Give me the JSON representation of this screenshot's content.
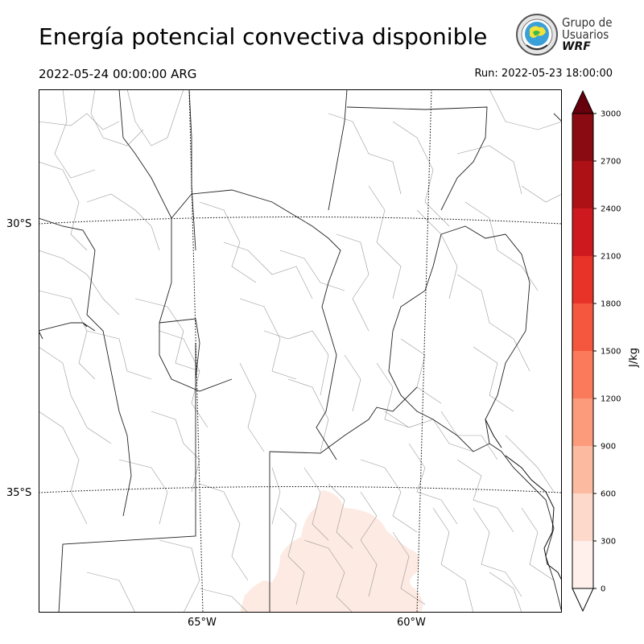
{
  "header": {
    "title": "Energía potencial convectiva disponible",
    "valid_time": "2022-05-24 00:00:00 ARG",
    "run_time": "Run: 2022-05-23 18:00:00"
  },
  "logo": {
    "line1": "Grupo de",
    "line2": "Usuarios",
    "line3": "WRF"
  },
  "map": {
    "variable": "CAPE",
    "lat_labels": [
      "30°S",
      "35°S"
    ],
    "lon_labels": [
      "65°W",
      "60°W"
    ],
    "field": [
      {
        "region": "southern Buenos Aires province",
        "value_range": [
          0,
          300
        ]
      }
    ]
  },
  "colorbar": {
    "unit": "J/kg",
    "ticks": [
      "0",
      "300",
      "600",
      "900",
      "1200",
      "1500",
      "1800",
      "2100",
      "2400",
      "2700",
      "3000"
    ],
    "colors": [
      "#fff0eb",
      "#fdd9cc",
      "#fcbba1",
      "#fc9a7c",
      "#fb7a5b",
      "#f5573e",
      "#e83329",
      "#ce1a1e",
      "#ad1116",
      "#8b0b12",
      "#67000d"
    ]
  }
}
